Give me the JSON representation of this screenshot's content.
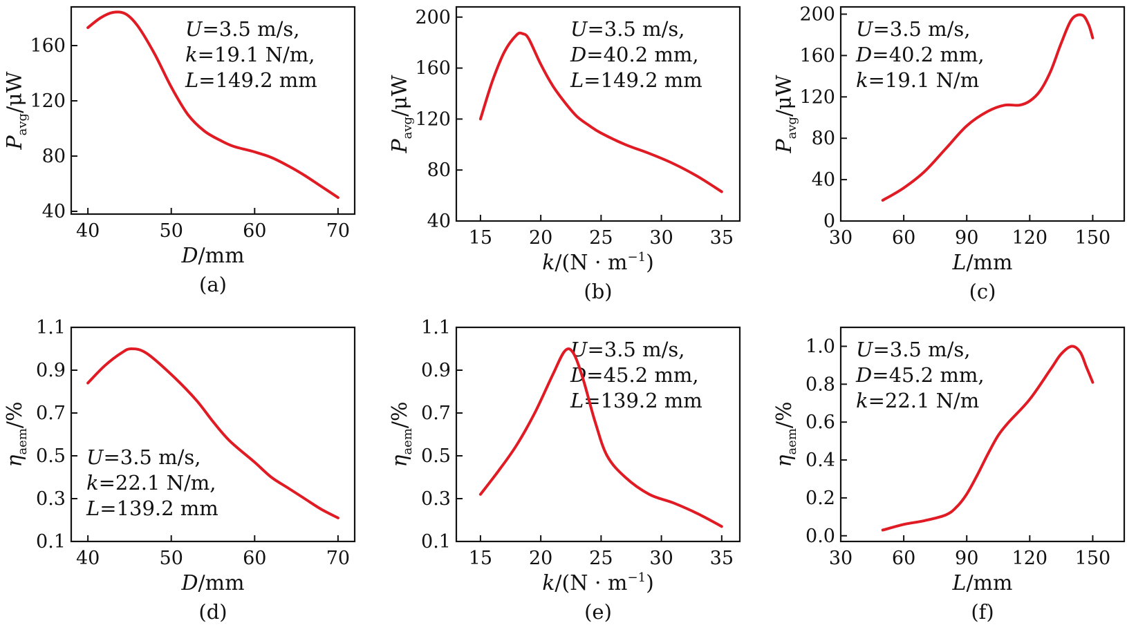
{
  "chart_data": [
    {
      "type": "line",
      "panel_label": "(a)",
      "xlabel": {
        "italic": "D",
        "rest": "/mm"
      },
      "ylabel": {
        "italic": "P",
        "sub": "avg",
        "rest": "/μW"
      },
      "xlim": [
        38,
        72
      ],
      "ylim": [
        38,
        188
      ],
      "xticks": [
        40,
        50,
        60,
        70
      ],
      "xtick_labels": [
        "40",
        "50",
        "60",
        "70"
      ],
      "yticks": [
        40,
        80,
        120,
        160
      ],
      "ytick_labels": [
        "40",
        "80",
        "120",
        "160"
      ],
      "annotation": {
        "position": "top-right",
        "lines": [
          {
            "italic": "U",
            "rest": "=3.5 m/s,"
          },
          {
            "italic": "k",
            "rest": "=19.1 N/m,"
          },
          {
            "italic": "L",
            "rest": "=149.2 mm"
          }
        ]
      },
      "series": [
        {
          "color": "#e01b24",
          "x": [
            40,
            41.5,
            43,
            44.5,
            46,
            48,
            50,
            52,
            54,
            56,
            57.5,
            60,
            62,
            64,
            66,
            68,
            70
          ],
          "y": [
            173,
            180,
            184,
            183,
            174,
            154,
            130,
            110,
            98,
            91,
            87,
            83,
            79,
            73,
            66,
            58,
            50
          ]
        }
      ]
    },
    {
      "type": "line",
      "panel_label": "(b)",
      "xlabel": {
        "italic": "k",
        "rest": "/(N · m",
        "sup": "−1",
        "tail": ")"
      },
      "ylabel": {
        "italic": "P",
        "sub": "avg",
        "rest": "/μW"
      },
      "xlim": [
        13,
        36.5
      ],
      "ylim": [
        40,
        208
      ],
      "xticks": [
        15,
        20,
        25,
        30,
        35
      ],
      "xtick_labels": [
        "15",
        "20",
        "25",
        "30",
        "35"
      ],
      "yticks": [
        40,
        80,
        120,
        160,
        200
      ],
      "ytick_labels": [
        "40",
        "80",
        "120",
        "160",
        "200"
      ],
      "annotation": {
        "position": "top-right",
        "lines": [
          {
            "italic": "U",
            "rest": "=3.5 m/s,"
          },
          {
            "italic": "D",
            "rest": "=40.2 mm,"
          },
          {
            "italic": "L",
            "rest": "=149.2 mm"
          }
        ]
      },
      "series": [
        {
          "color": "#e01b24",
          "x": [
            15,
            16,
            17,
            18,
            18.5,
            19,
            20,
            21,
            22,
            23,
            24,
            25,
            27,
            29,
            31,
            33,
            35
          ],
          "y": [
            120,
            150,
            173,
            186,
            187,
            183,
            163,
            146,
            133,
            122,
            115,
            109,
            100,
            93,
            85,
            75,
            63
          ]
        }
      ]
    },
    {
      "type": "line",
      "panel_label": "(c)",
      "xlabel": {
        "italic": "L",
        "rest": "/mm"
      },
      "ylabel": {
        "italic": "P",
        "sub": "avg",
        "rest": "/μW"
      },
      "xlim": [
        30,
        165
      ],
      "ylim": [
        0,
        207
      ],
      "xticks": [
        30,
        60,
        90,
        120,
        150
      ],
      "xtick_labels": [
        "30",
        "60",
        "90",
        "120",
        "150"
      ],
      "yticks": [
        0,
        40,
        80,
        120,
        160,
        200
      ],
      "ytick_labels": [
        "0",
        "40",
        "80",
        "120",
        "160",
        "200"
      ],
      "annotation": {
        "position": "top-left",
        "lines": [
          {
            "italic": "U",
            "rest": "=3.5 m/s,"
          },
          {
            "italic": "D",
            "rest": "=40.2 mm,"
          },
          {
            "italic": "k",
            "rest": "=19.1 N/m"
          }
        ]
      },
      "series": [
        {
          "color": "#e01b24",
          "x": [
            50,
            60,
            70,
            80,
            90,
            100,
            108,
            115,
            120,
            125,
            130,
            135,
            140,
            145,
            148,
            150
          ],
          "y": [
            20,
            32,
            48,
            70,
            92,
            106,
            112,
            112,
            116,
            126,
            145,
            172,
            195,
            199,
            190,
            177
          ]
        }
      ]
    },
    {
      "type": "line",
      "panel_label": "(d)",
      "xlabel": {
        "italic": "D",
        "rest": "/mm"
      },
      "ylabel": {
        "italic": "η",
        "sub": "aem",
        "rest": "/%"
      },
      "xlim": [
        38,
        72
      ],
      "ylim": [
        0.1,
        1.1
      ],
      "xticks": [
        40,
        50,
        60,
        70
      ],
      "xtick_labels": [
        "40",
        "50",
        "60",
        "70"
      ],
      "yticks": [
        0.1,
        0.3,
        0.5,
        0.7,
        0.9,
        1.1
      ],
      "ytick_labels": [
        "0.1",
        "0.3",
        "0.5",
        "0.7",
        "0.9",
        "1.1"
      ],
      "annotation": {
        "position": "bottom-left",
        "lines": [
          {
            "italic": "U",
            "rest": "=3.5 m/s,"
          },
          {
            "italic": "k",
            "rest": "=22.1 N/m,"
          },
          {
            "italic": "L",
            "rest": "=139.2 mm"
          }
        ]
      },
      "series": [
        {
          "color": "#e01b24",
          "x": [
            40,
            42,
            44,
            45.2,
            47,
            50,
            53,
            55,
            57,
            60,
            62,
            64,
            66,
            68,
            70
          ],
          "y": [
            0.84,
            0.92,
            0.98,
            1.0,
            0.98,
            0.88,
            0.76,
            0.66,
            0.57,
            0.47,
            0.4,
            0.35,
            0.3,
            0.25,
            0.21
          ]
        }
      ]
    },
    {
      "type": "line",
      "panel_label": "(e)",
      "xlabel": {
        "italic": "k",
        "rest": "/(N · m",
        "sup": "−1",
        "tail": ")"
      },
      "ylabel": {
        "italic": "η",
        "sub": "aem",
        "rest": "/%"
      },
      "xlim": [
        13,
        36.5
      ],
      "ylim": [
        0.1,
        1.1
      ],
      "xticks": [
        15,
        20,
        25,
        30,
        35
      ],
      "xtick_labels": [
        "15",
        "20",
        "25",
        "30",
        "35"
      ],
      "yticks": [
        0.1,
        0.3,
        0.5,
        0.7,
        0.9,
        1.1
      ],
      "ytick_labels": [
        "0.1",
        "0.3",
        "0.5",
        "0.7",
        "0.9",
        "1.1"
      ],
      "annotation": {
        "position": "top-right",
        "lines": [
          {
            "italic": "U",
            "rest": "=3.5 m/s,"
          },
          {
            "italic": "D",
            "rest": "=45.2 mm,"
          },
          {
            "italic": "L",
            "rest": "=139.2 mm"
          }
        ]
      },
      "series": [
        {
          "color": "#e01b24",
          "x": [
            15,
            16.5,
            18,
            19.5,
            21,
            22,
            22.7,
            23.5,
            24.5,
            25.5,
            27,
            29,
            31,
            33,
            35
          ],
          "y": [
            0.32,
            0.43,
            0.55,
            0.7,
            0.88,
            0.99,
            0.98,
            0.86,
            0.66,
            0.5,
            0.4,
            0.32,
            0.28,
            0.23,
            0.17
          ]
        }
      ]
    },
    {
      "type": "line",
      "panel_label": "(f)",
      "xlabel": {
        "italic": "L",
        "rest": "/mm"
      },
      "ylabel": {
        "italic": "η",
        "sub": "aem",
        "rest": "/%"
      },
      "xlim": [
        30,
        165
      ],
      "ylim": [
        -0.03,
        1.1
      ],
      "xticks": [
        30,
        60,
        90,
        120,
        150
      ],
      "xtick_labels": [
        "30",
        "60",
        "90",
        "120",
        "150"
      ],
      "yticks": [
        0,
        0.2,
        0.4,
        0.6,
        0.8,
        1.0
      ],
      "ytick_labels": [
        "0.0",
        "0.2",
        "0.4",
        "0.6",
        "0.8",
        "1.0"
      ],
      "annotation": {
        "position": "top-left",
        "lines": [
          {
            "italic": "U",
            "rest": "=3.5 m/s,"
          },
          {
            "italic": "D",
            "rest": "=45.2 mm,"
          },
          {
            "italic": "k",
            "rest": "=22.1 N/m"
          }
        ]
      },
      "series": [
        {
          "color": "#e01b24",
          "x": [
            50,
            60,
            70,
            80,
            85,
            90,
            95,
            100,
            105,
            110,
            120,
            130,
            135,
            140,
            144,
            147,
            150
          ],
          "y": [
            0.03,
            0.06,
            0.08,
            0.11,
            0.15,
            0.22,
            0.32,
            0.43,
            0.53,
            0.6,
            0.72,
            0.88,
            0.96,
            1.0,
            0.97,
            0.89,
            0.81
          ]
        }
      ]
    }
  ]
}
